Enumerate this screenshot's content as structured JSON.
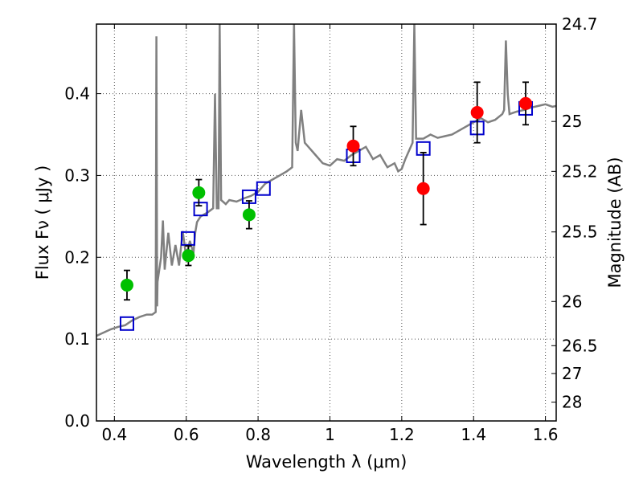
{
  "chart_data": {
    "type": "scatter",
    "xlabel": "Wavelength  λ (μm)",
    "ylabel": "Flux  Fν  ( μJy )",
    "y2label": "Magnitude (AB)",
    "xlim": [
      0.35,
      1.63
    ],
    "ylim": [
      0.0,
      0.485
    ],
    "grid": true,
    "x_ticks": [
      0.4,
      0.6,
      0.8,
      1.0,
      1.2,
      1.4,
      1.6
    ],
    "x_tick_labels": [
      "0.4",
      "0.6",
      "0.8",
      "1",
      "1.2",
      "1.4",
      "1.6"
    ],
    "y_ticks": [
      0.0,
      0.1,
      0.2,
      0.3,
      0.4
    ],
    "y_tick_labels": [
      "0.0",
      "0.1",
      "0.2",
      "0.3",
      "0.4"
    ],
    "y2_ticks": [
      {
        "label": "24.7",
        "flux": 0.485
      },
      {
        "label": "25",
        "flux": 0.366
      },
      {
        "label": "25.2",
        "flux": 0.305
      },
      {
        "label": "25.5",
        "flux": 0.231
      },
      {
        "label": "26",
        "flux": 0.146
      },
      {
        "label": "26.5",
        "flux": 0.092
      },
      {
        "label": "27",
        "flux": 0.058
      },
      {
        "label": "28",
        "flux": 0.023
      }
    ],
    "series": [
      {
        "marker": "circle",
        "color": "#00c000",
        "points": [
          {
            "x": 0.435,
            "y": 0.166,
            "yerr": 0.018
          },
          {
            "x": 0.606,
            "y": 0.202,
            "yerr": 0.012
          },
          {
            "x": 0.635,
            "y": 0.279,
            "yerr": 0.016
          },
          {
            "x": 0.775,
            "y": 0.252,
            "yerr": 0.017
          }
        ]
      },
      {
        "marker": "circle",
        "color": "#ff0000",
        "points": [
          {
            "x": 1.065,
            "y": 0.336,
            "yerr": 0.024
          },
          {
            "x": 1.26,
            "y": 0.284,
            "yerr": 0.044
          },
          {
            "x": 1.41,
            "y": 0.377,
            "yerr": 0.037
          },
          {
            "x": 1.545,
            "y": 0.388,
            "yerr": 0.026
          }
        ]
      },
      {
        "marker": "open-square",
        "color": "#0000cc",
        "points": [
          {
            "x": 0.435,
            "y": 0.119
          },
          {
            "x": 0.605,
            "y": 0.223
          },
          {
            "x": 0.64,
            "y": 0.259
          },
          {
            "x": 0.775,
            "y": 0.274
          },
          {
            "x": 0.815,
            "y": 0.284
          },
          {
            "x": 1.065,
            "y": 0.324
          },
          {
            "x": 1.26,
            "y": 0.333
          },
          {
            "x": 1.41,
            "y": 0.358
          },
          {
            "x": 1.545,
            "y": 0.382
          }
        ]
      },
      {
        "type": "line",
        "color": "#808080",
        "points": [
          [
            0.35,
            0.104
          ],
          [
            0.37,
            0.108
          ],
          [
            0.39,
            0.112
          ],
          [
            0.41,
            0.115
          ],
          [
            0.43,
            0.117
          ],
          [
            0.45,
            0.123
          ],
          [
            0.47,
            0.127
          ],
          [
            0.49,
            0.13
          ],
          [
            0.505,
            0.13
          ],
          [
            0.515,
            0.133
          ],
          [
            0.517,
            0.47
          ],
          [
            0.519,
            0.14
          ],
          [
            0.52,
            0.17
          ],
          [
            0.53,
            0.2
          ],
          [
            0.535,
            0.245
          ],
          [
            0.54,
            0.185
          ],
          [
            0.55,
            0.23
          ],
          [
            0.56,
            0.19
          ],
          [
            0.57,
            0.215
          ],
          [
            0.58,
            0.19
          ],
          [
            0.59,
            0.232
          ],
          [
            0.6,
            0.2
          ],
          [
            0.61,
            0.22
          ],
          [
            0.62,
            0.205
          ],
          [
            0.625,
            0.23
          ],
          [
            0.63,
            0.243
          ],
          [
            0.64,
            0.25
          ],
          [
            0.66,
            0.255
          ],
          [
            0.675,
            0.26
          ],
          [
            0.68,
            0.4
          ],
          [
            0.685,
            0.26
          ],
          [
            0.69,
            0.26
          ],
          [
            0.693,
            0.485
          ],
          [
            0.697,
            0.27
          ],
          [
            0.71,
            0.265
          ],
          [
            0.72,
            0.27
          ],
          [
            0.74,
            0.268
          ],
          [
            0.76,
            0.272
          ],
          [
            0.78,
            0.275
          ],
          [
            0.8,
            0.28
          ],
          [
            0.82,
            0.29
          ],
          [
            0.84,
            0.295
          ],
          [
            0.86,
            0.3
          ],
          [
            0.88,
            0.305
          ],
          [
            0.895,
            0.31
          ],
          [
            0.9,
            0.485
          ],
          [
            0.905,
            0.34
          ],
          [
            0.91,
            0.33
          ],
          [
            0.92,
            0.38
          ],
          [
            0.93,
            0.34
          ],
          [
            0.94,
            0.335
          ],
          [
            0.96,
            0.325
          ],
          [
            0.98,
            0.315
          ],
          [
            1.0,
            0.312
          ],
          [
            1.02,
            0.32
          ],
          [
            1.04,
            0.318
          ],
          [
            1.06,
            0.325
          ],
          [
            1.08,
            0.33
          ],
          [
            1.1,
            0.335
          ],
          [
            1.12,
            0.32
          ],
          [
            1.14,
            0.325
          ],
          [
            1.16,
            0.31
          ],
          [
            1.18,
            0.315
          ],
          [
            1.19,
            0.305
          ],
          [
            1.2,
            0.308
          ],
          [
            1.21,
            0.32
          ],
          [
            1.22,
            0.33
          ],
          [
            1.23,
            0.34
          ],
          [
            1.235,
            0.485
          ],
          [
            1.24,
            0.345
          ],
          [
            1.26,
            0.345
          ],
          [
            1.28,
            0.35
          ],
          [
            1.3,
            0.346
          ],
          [
            1.32,
            0.348
          ],
          [
            1.34,
            0.35
          ],
          [
            1.36,
            0.355
          ],
          [
            1.38,
            0.36
          ],
          [
            1.4,
            0.365
          ],
          [
            1.42,
            0.37
          ],
          [
            1.44,
            0.365
          ],
          [
            1.46,
            0.368
          ],
          [
            1.48,
            0.375
          ],
          [
            1.485,
            0.38
          ],
          [
            1.49,
            0.465
          ],
          [
            1.495,
            0.4
          ],
          [
            1.5,
            0.375
          ],
          [
            1.52,
            0.378
          ],
          [
            1.54,
            0.38
          ],
          [
            1.56,
            0.383
          ],
          [
            1.58,
            0.385
          ],
          [
            1.6,
            0.387
          ],
          [
            1.62,
            0.384
          ],
          [
            1.63,
            0.385
          ]
        ]
      }
    ]
  }
}
